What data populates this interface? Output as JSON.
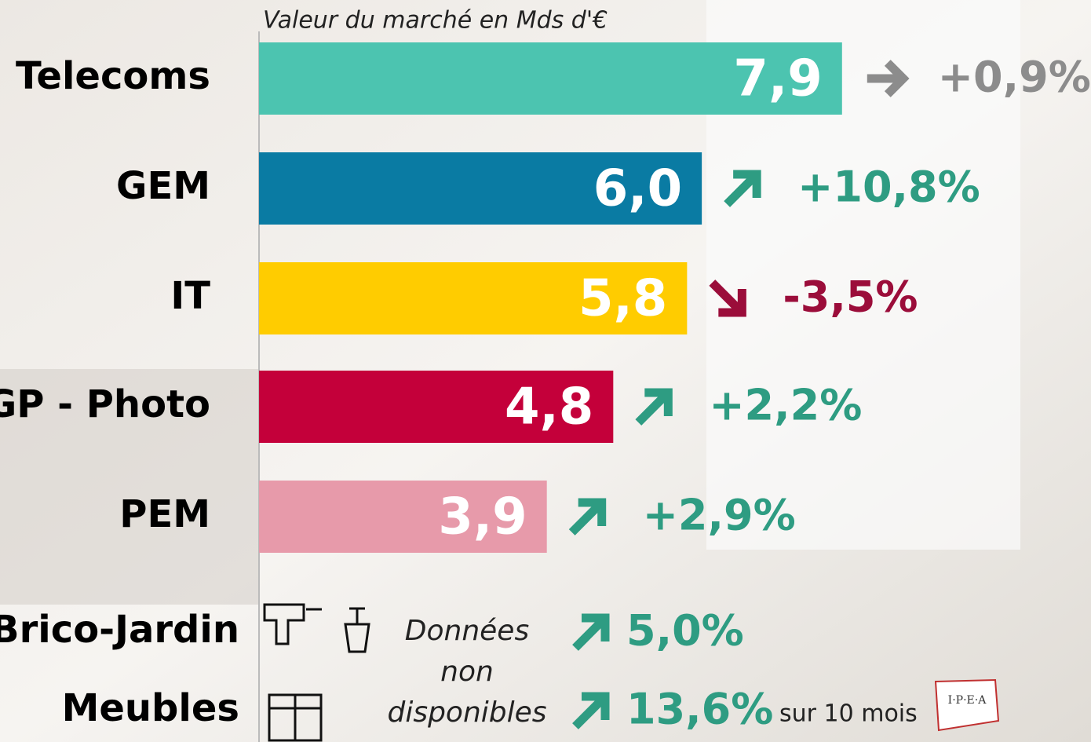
{
  "chart_data": {
    "type": "bar",
    "orientation": "horizontal",
    "title": "Valeur du marché en Mds d'€",
    "categories": [
      "Telecoms",
      "GEM",
      "IT",
      "GP - Photo",
      "PEM",
      "Brico-Jardin",
      "Meubles"
    ],
    "values": [
      7.9,
      6.0,
      5.8,
      4.8,
      3.9,
      null,
      null
    ],
    "value_labels": [
      "7,9",
      "6,0",
      "5,8",
      "4,8",
      "3,9",
      null,
      null
    ],
    "colors": [
      "#4cc4b0",
      "#0a7ba3",
      "#ffcc00",
      "#c4003a",
      "#e79aaa",
      null,
      null
    ],
    "xlim": [
      0,
      8.2
    ],
    "changes": [
      "+0,9%",
      "+10,8%",
      "-3,5%",
      "+2,2%",
      "+2,9%",
      "5,0%",
      "13,6%"
    ],
    "trends": [
      "flat",
      "up",
      "down",
      "up",
      "up",
      "up",
      "up"
    ],
    "trend_colors": {
      "flat": "#8c8c8c",
      "up": "#2e9c82",
      "down": "#9b0d3a"
    },
    "note": [
      "Données",
      "non",
      "disponibles"
    ],
    "footnote": "sur 10 mois",
    "logo": "I·P·E·A"
  }
}
